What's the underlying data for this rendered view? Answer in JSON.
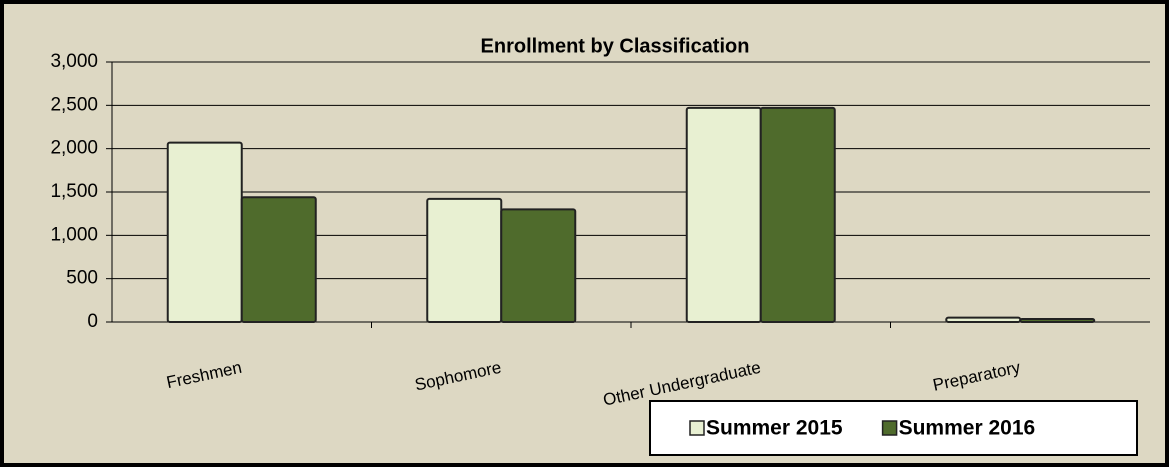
{
  "chart_data": {
    "type": "bar",
    "title": "Enrollment by Classification",
    "categories": [
      "Freshmen",
      "Sophomore",
      "Other Undergraduate",
      "Preparatory"
    ],
    "series": [
      {
        "name": "Summer 2015",
        "color": "#e8f0d2",
        "values": [
          2070,
          1420,
          2470,
          50
        ]
      },
      {
        "name": "Summer 2016",
        "color": "#4f6b2c",
        "values": [
          1440,
          1300,
          2470,
          35
        ]
      }
    ],
    "ylim": [
      0,
      3000
    ],
    "yticks": [
      0,
      500,
      {
        "value": 1000,
        "label": "1,000"
      },
      {
        "value": 1500,
        "label": "1,500"
      },
      {
        "value": 2000,
        "label": "2,000"
      },
      {
        "value": 2500,
        "label": "2,500"
      },
      {
        "value": 3000,
        "label": "3,000"
      }
    ],
    "grid": true,
    "legend": "bottom-right"
  }
}
